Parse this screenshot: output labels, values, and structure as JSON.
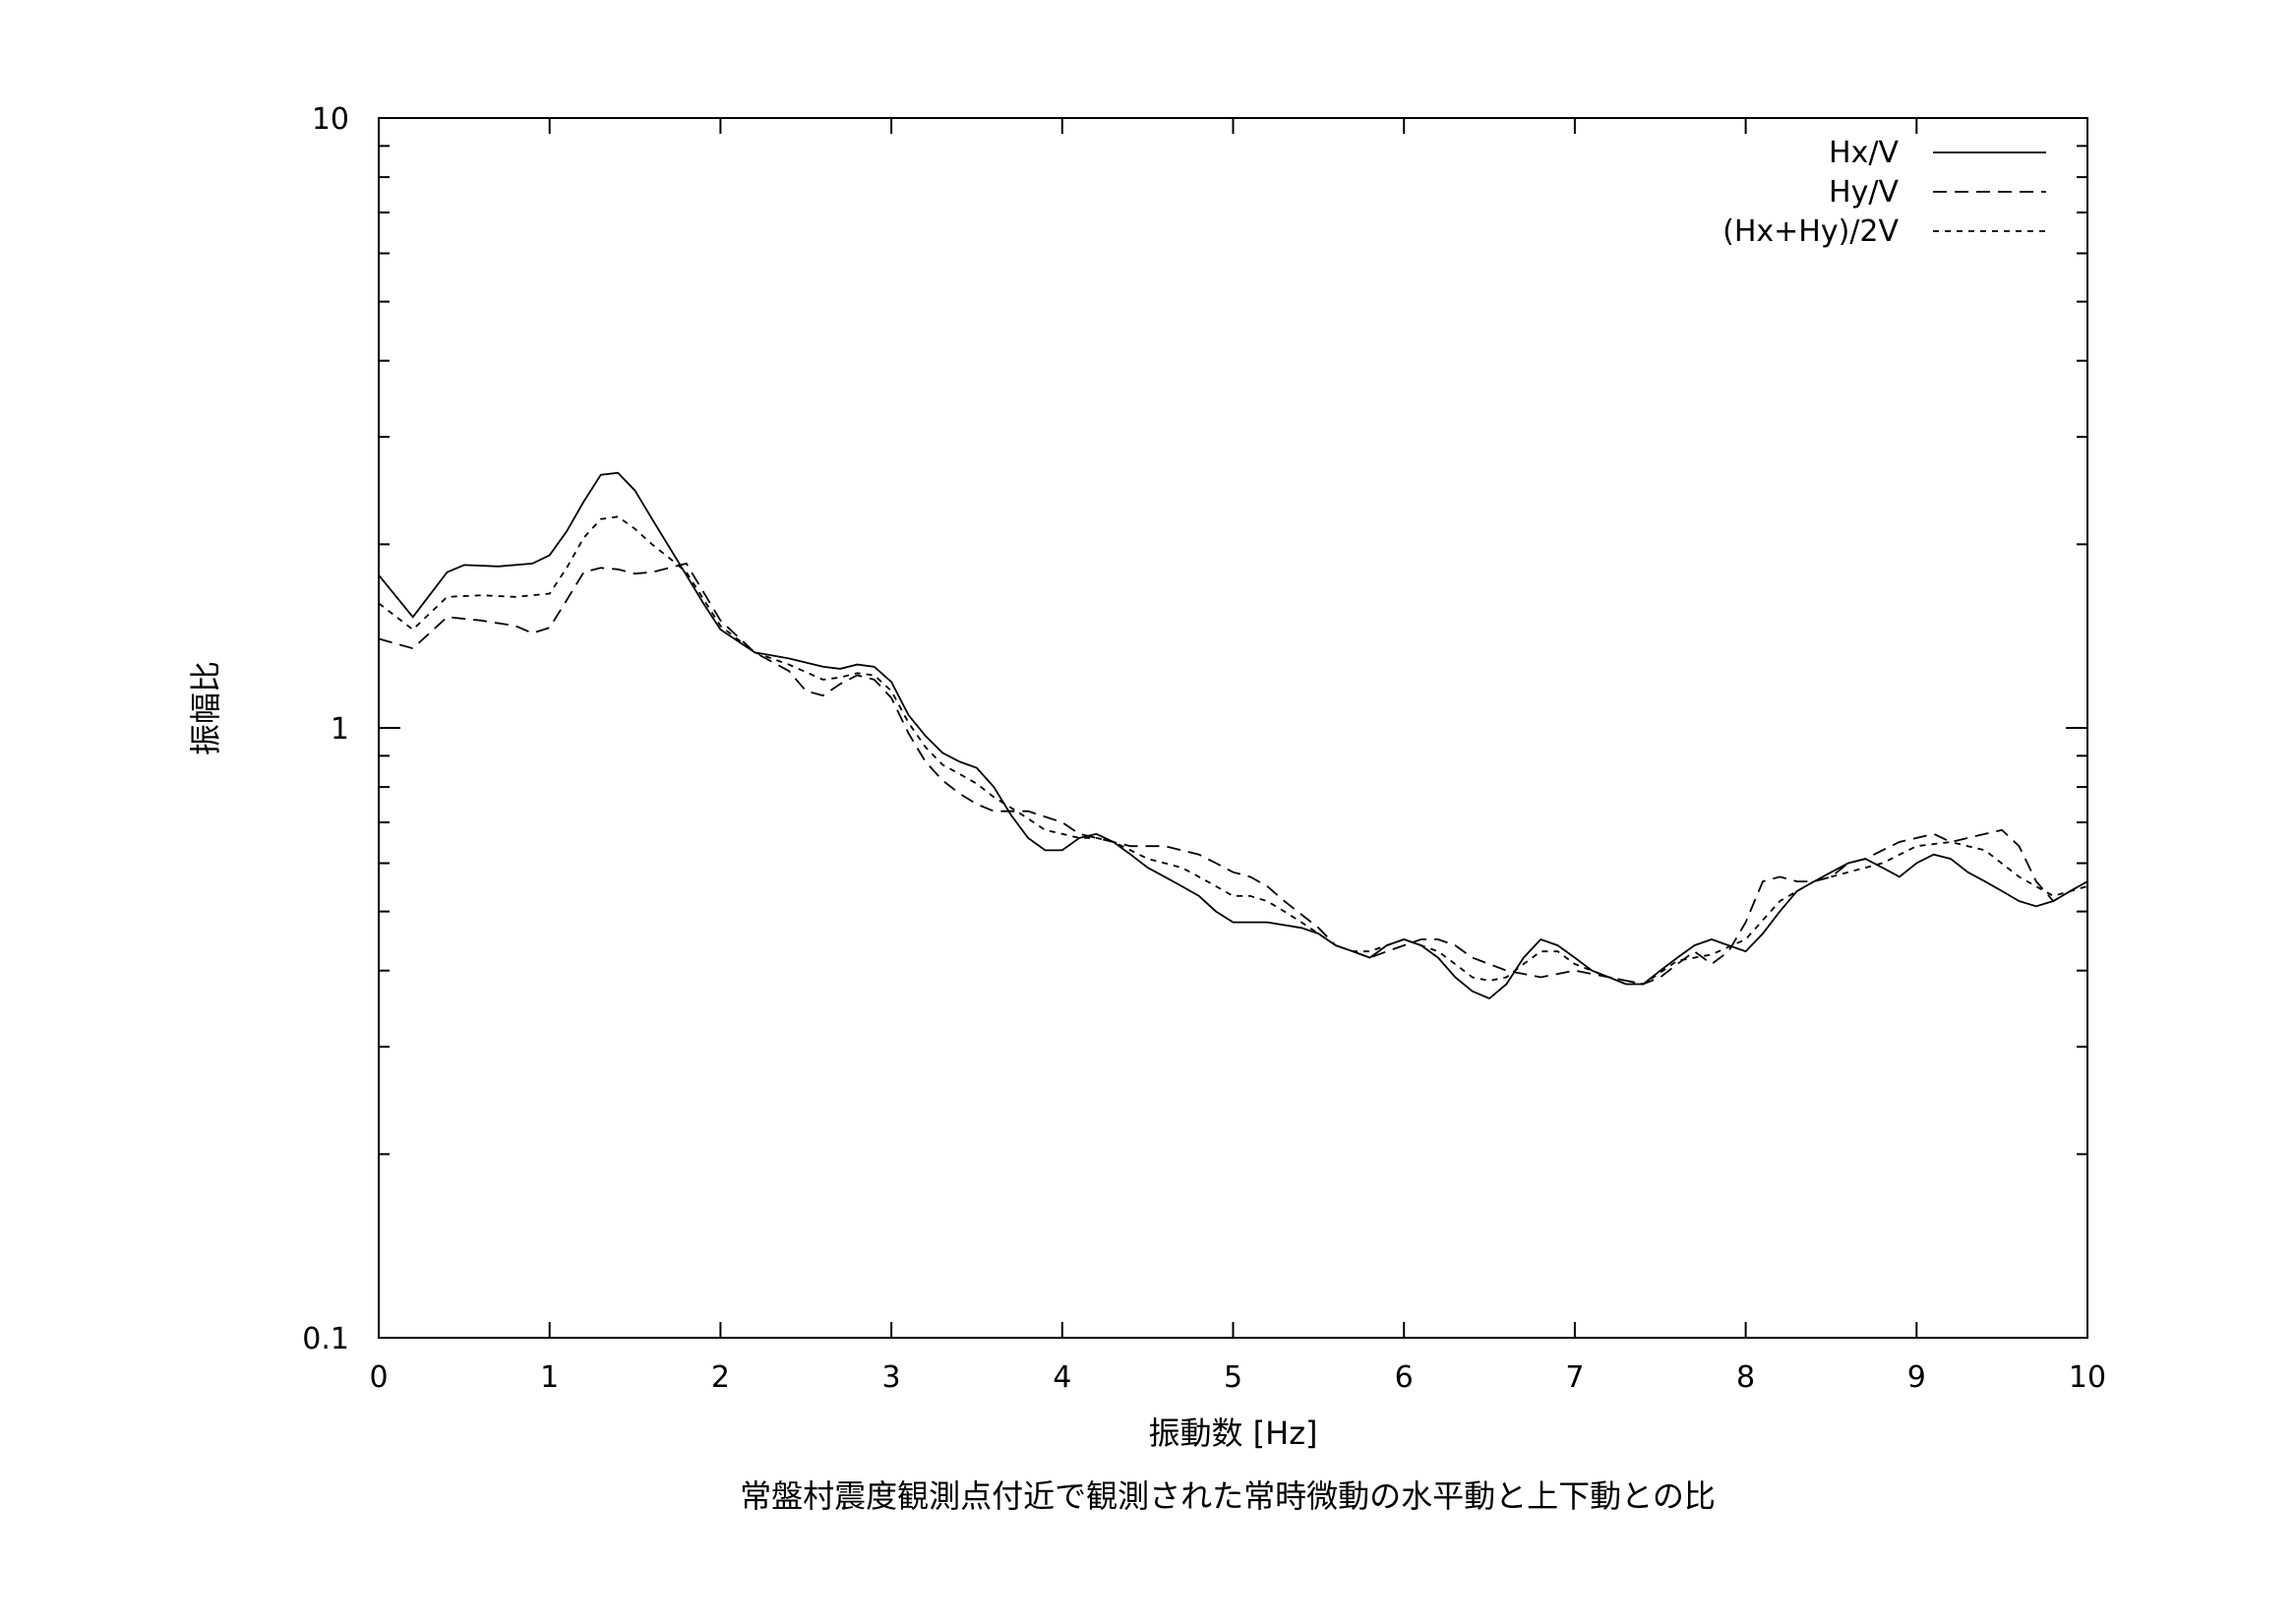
{
  "chart_data": {
    "type": "line",
    "xlabel": "振動数 [Hz]",
    "ylabel": "振幅比",
    "caption": "常盤村震度観測点付近で観測された常時微動の水平動と上下動との比",
    "xlim": [
      0,
      10
    ],
    "ylim": [
      0.1,
      10
    ],
    "y_scale": "log",
    "x_ticks": [
      0,
      1,
      2,
      3,
      4,
      5,
      6,
      7,
      8,
      9,
      10
    ],
    "x_tick_labels": [
      "0",
      "1",
      "2",
      "3",
      "4",
      "5",
      "6",
      "7",
      "8",
      "9",
      "10"
    ],
    "y_ticks": [
      0.1,
      1,
      10
    ],
    "y_tick_labels": [
      "0.1",
      "1",
      "10"
    ],
    "grid": false,
    "legend_position": "top-right",
    "series": [
      {
        "name": "Hx/V",
        "style": "solid",
        "x": [
          0.0,
          0.2,
          0.4,
          0.5,
          0.7,
          0.9,
          1.0,
          1.1,
          1.2,
          1.3,
          1.4,
          1.5,
          1.6,
          1.7,
          1.8,
          1.9,
          2.0,
          2.2,
          2.4,
          2.6,
          2.7,
          2.8,
          2.9,
          3.0,
          3.1,
          3.2,
          3.3,
          3.4,
          3.5,
          3.6,
          3.7,
          3.8,
          3.9,
          4.0,
          4.1,
          4.2,
          4.3,
          4.4,
          4.5,
          4.6,
          4.7,
          4.8,
          4.9,
          5.0,
          5.2,
          5.4,
          5.5,
          5.6,
          5.7,
          5.8,
          5.9,
          6.0,
          6.1,
          6.2,
          6.3,
          6.4,
          6.5,
          6.6,
          6.7,
          6.8,
          6.9,
          7.0,
          7.1,
          7.2,
          7.3,
          7.4,
          7.5,
          7.6,
          7.7,
          7.8,
          7.9,
          8.0,
          8.1,
          8.2,
          8.3,
          8.4,
          8.5,
          8.6,
          8.7,
          8.8,
          8.9,
          9.0,
          9.1,
          9.2,
          9.3,
          9.4,
          9.5,
          9.6,
          9.7,
          9.8,
          9.9,
          10.0
        ],
        "values": [
          1.78,
          1.52,
          1.8,
          1.85,
          1.84,
          1.86,
          1.92,
          2.1,
          2.35,
          2.6,
          2.62,
          2.45,
          2.2,
          1.98,
          1.78,
          1.6,
          1.45,
          1.33,
          1.3,
          1.26,
          1.25,
          1.27,
          1.26,
          1.19,
          1.05,
          0.97,
          0.91,
          0.88,
          0.86,
          0.8,
          0.72,
          0.66,
          0.63,
          0.63,
          0.66,
          0.67,
          0.65,
          0.62,
          0.59,
          0.57,
          0.55,
          0.53,
          0.5,
          0.48,
          0.48,
          0.47,
          0.46,
          0.44,
          0.43,
          0.42,
          0.44,
          0.45,
          0.44,
          0.42,
          0.39,
          0.37,
          0.36,
          0.38,
          0.42,
          0.45,
          0.44,
          0.42,
          0.4,
          0.39,
          0.38,
          0.38,
          0.4,
          0.42,
          0.44,
          0.45,
          0.44,
          0.43,
          0.46,
          0.5,
          0.54,
          0.56,
          0.58,
          0.6,
          0.61,
          0.59,
          0.57,
          0.6,
          0.62,
          0.61,
          0.58,
          0.56,
          0.54,
          0.52,
          0.51,
          0.52,
          0.54,
          0.56
        ]
      },
      {
        "name": "Hy/V",
        "style": "dashed",
        "x": [
          0.0,
          0.2,
          0.4,
          0.6,
          0.8,
          0.9,
          1.0,
          1.1,
          1.2,
          1.3,
          1.4,
          1.5,
          1.6,
          1.7,
          1.8,
          2.0,
          2.2,
          2.4,
          2.5,
          2.6,
          2.7,
          2.8,
          2.9,
          3.0,
          3.1,
          3.2,
          3.3,
          3.4,
          3.5,
          3.6,
          3.8,
          4.0,
          4.1,
          4.2,
          4.3,
          4.4,
          4.6,
          4.8,
          4.9,
          5.0,
          5.1,
          5.2,
          5.3,
          5.5,
          5.6,
          5.7,
          5.8,
          5.9,
          6.0,
          6.1,
          6.2,
          6.3,
          6.4,
          6.5,
          6.6,
          6.8,
          7.0,
          7.2,
          7.4,
          7.5,
          7.6,
          7.7,
          7.8,
          7.9,
          8.0,
          8.1,
          8.2,
          8.3,
          8.4,
          8.5,
          8.6,
          8.7,
          8.8,
          8.9,
          9.0,
          9.1,
          9.2,
          9.3,
          9.4,
          9.5,
          9.6,
          9.7,
          9.8,
          9.9,
          10.0
        ],
        "values": [
          1.4,
          1.35,
          1.52,
          1.5,
          1.47,
          1.43,
          1.46,
          1.62,
          1.8,
          1.83,
          1.82,
          1.79,
          1.8,
          1.83,
          1.86,
          1.5,
          1.33,
          1.24,
          1.15,
          1.13,
          1.18,
          1.22,
          1.2,
          1.12,
          0.98,
          0.88,
          0.82,
          0.78,
          0.75,
          0.73,
          0.73,
          0.7,
          0.67,
          0.66,
          0.65,
          0.64,
          0.64,
          0.62,
          0.6,
          0.58,
          0.57,
          0.55,
          0.52,
          0.47,
          0.44,
          0.43,
          0.42,
          0.43,
          0.44,
          0.45,
          0.45,
          0.44,
          0.42,
          0.41,
          0.4,
          0.39,
          0.4,
          0.39,
          0.38,
          0.39,
          0.41,
          0.43,
          0.41,
          0.43,
          0.48,
          0.56,
          0.57,
          0.56,
          0.56,
          0.57,
          0.6,
          0.61,
          0.63,
          0.65,
          0.66,
          0.67,
          0.65,
          0.66,
          0.67,
          0.68,
          0.64,
          0.56,
          0.52,
          0.54,
          0.56
        ]
      },
      {
        "name": "(Hx+Hy)/2V",
        "style": "dotted",
        "x": [
          0.0,
          0.2,
          0.4,
          0.6,
          0.8,
          1.0,
          1.1,
          1.2,
          1.3,
          1.4,
          1.5,
          1.6,
          1.7,
          1.8,
          2.0,
          2.2,
          2.4,
          2.6,
          2.7,
          2.8,
          2.9,
          3.0,
          3.1,
          3.2,
          3.3,
          3.4,
          3.5,
          3.6,
          3.7,
          3.8,
          3.9,
          4.0,
          4.1,
          4.2,
          4.3,
          4.4,
          4.5,
          4.6,
          4.7,
          4.8,
          4.9,
          5.0,
          5.1,
          5.2,
          5.3,
          5.4,
          5.5,
          5.6,
          5.7,
          5.8,
          5.9,
          6.0,
          6.1,
          6.2,
          6.3,
          6.4,
          6.5,
          6.6,
          6.7,
          6.8,
          6.9,
          7.0,
          7.2,
          7.4,
          7.6,
          7.8,
          8.0,
          8.2,
          8.4,
          8.6,
          8.8,
          9.0,
          9.2,
          9.4,
          9.6,
          9.8,
          10.0
        ],
        "values": [
          1.6,
          1.45,
          1.64,
          1.65,
          1.64,
          1.66,
          1.83,
          2.05,
          2.2,
          2.22,
          2.12,
          2.0,
          1.9,
          1.8,
          1.47,
          1.33,
          1.27,
          1.2,
          1.21,
          1.23,
          1.22,
          1.15,
          1.02,
          0.93,
          0.87,
          0.84,
          0.81,
          0.77,
          0.74,
          0.71,
          0.68,
          0.67,
          0.66,
          0.66,
          0.65,
          0.63,
          0.61,
          0.6,
          0.59,
          0.57,
          0.55,
          0.53,
          0.53,
          0.52,
          0.5,
          0.48,
          0.46,
          0.44,
          0.43,
          0.43,
          0.44,
          0.45,
          0.44,
          0.43,
          0.41,
          0.39,
          0.385,
          0.39,
          0.41,
          0.43,
          0.43,
          0.41,
          0.39,
          0.38,
          0.415,
          0.425,
          0.45,
          0.52,
          0.56,
          0.58,
          0.6,
          0.64,
          0.65,
          0.63,
          0.57,
          0.53,
          0.55
        ]
      }
    ]
  }
}
